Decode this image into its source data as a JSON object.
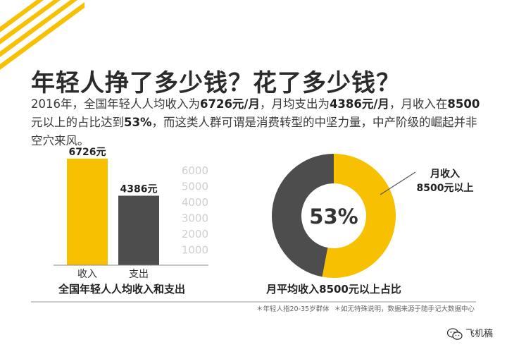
{
  "headline": "年轻人挣了多少钱？花了多少钱？",
  "intro": {
    "p1": "2016年，全国年轻人人均收入为",
    "income": "6726元/月",
    "p2": "，月均支出为",
    "spend": "4386元/月",
    "p3": "，月收入在",
    "threshold": "8500",
    "p4": "元以上的占比达到",
    "pct": "53%",
    "p5": "，而这类人群可谓是消费转型的中坚力量，中产阶级的崛起并非空穴来风。"
  },
  "chart_data": [
    {
      "type": "bar",
      "title": "全国年轻人人均收入和支出",
      "categories": [
        "收入",
        "支出"
      ],
      "values": [
        6726,
        4386
      ],
      "data_labels": [
        "6726元",
        "4386元"
      ],
      "ylim": [
        0,
        6500
      ],
      "yticks": [
        1000,
        2000,
        3000,
        4000,
        5000,
        6000
      ],
      "colors": [
        "#f7c000",
        "#4d4d4d"
      ],
      "axis_side": "right"
    },
    {
      "type": "pie",
      "style": "donut",
      "title": "月平均收入8500元以上占比",
      "slices": [
        {
          "label": "月收入8500元以上",
          "value": 53,
          "color": "#f7c000"
        },
        {
          "label": "",
          "value": 47,
          "color": "#4d4d4d"
        }
      ],
      "center_label": "53%",
      "callout_lines": [
        "月收入",
        "8500元以上"
      ]
    }
  ],
  "footnotes": {
    "left": "＊年轻人指20-35岁群体",
    "right": "＊如无特殊说明，数据来源于随手记大数据中心"
  },
  "signature": "飞机稿",
  "colors": {
    "accent": "#f7c000",
    "dark": "#4d4d4d",
    "axis_text": "#cfcfcf"
  }
}
